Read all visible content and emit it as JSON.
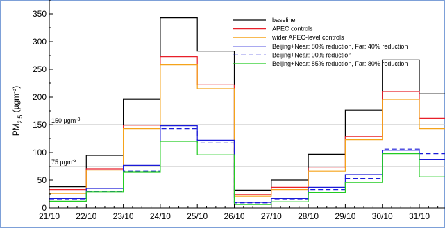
{
  "chart_data": {
    "type": "line",
    "step": true,
    "ylabel_main": "PM",
    "ylabel_sub": "2.5",
    "ylabel_unit_pre": " (µgm",
    "ylabel_unit_sup": "-3",
    "ylabel_unit_post": ")",
    "ylim": [
      0,
      375
    ],
    "yticks": [
      "0",
      "50",
      "100",
      "150",
      "200",
      "250",
      "300",
      "350"
    ],
    "xlabels": [
      "21/10",
      "22/10",
      "23/10",
      "24/10",
      "25/10",
      "26/10",
      "27/10",
      "28/10",
      "29/10",
      "30/10",
      "31/10"
    ],
    "reference_lines": [
      {
        "value": 150,
        "label": "150 µgm",
        "sup": "-3"
      },
      {
        "value": 75,
        "label": "75 µgm",
        "sup": "-3"
      }
    ],
    "series": [
      {
        "name": "baseline",
        "color": "#000000",
        "dash": false,
        "values": [
          38,
          95,
          196,
          343,
          283,
          32,
          50,
          97,
          176,
          267,
          206
        ]
      },
      {
        "name": "APEC controls",
        "color": "#e8202a",
        "dash": false,
        "values": [
          33,
          70,
          149,
          273,
          222,
          24,
          37,
          72,
          129,
          210,
          162
        ]
      },
      {
        "name": "wider APEC-level controls",
        "color": "#f5a31a",
        "dash": false,
        "values": [
          26,
          68,
          143,
          258,
          215,
          21,
          33,
          66,
          123,
          195,
          143
        ]
      },
      {
        "name": "Beijing+Near: 80% reduction, Far: 40% reduction",
        "color": "#1a1ad8",
        "dash": false,
        "values": [
          17,
          35,
          77,
          148,
          122,
          10,
          17,
          37,
          60,
          104,
          87
        ]
      },
      {
        "name": "Beijing+Near: 90% reduction",
        "color": "#1a1ad8",
        "dash": true,
        "values": [
          15,
          30,
          66,
          143,
          117,
          9,
          15,
          33,
          53,
          106,
          98
        ]
      },
      {
        "name": "Beijing+Near: 85% reduction, Far: 80% reduction",
        "color": "#22cc22",
        "dash": false,
        "values": [
          12,
          29,
          65,
          120,
          96,
          6,
          11,
          28,
          46,
          98,
          56
        ]
      }
    ]
  }
}
